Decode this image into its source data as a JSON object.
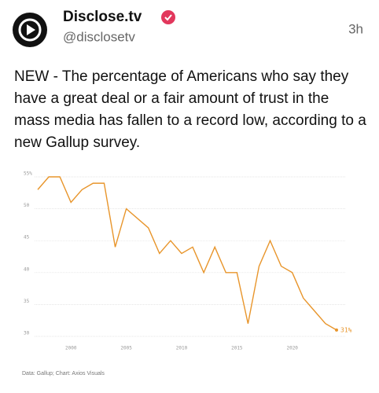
{
  "header": {
    "name": "Disclose.tv",
    "handle": "@disclosetv",
    "time": "3h"
  },
  "text": "NEW - The percentage of Americans who say they have a great deal or a fair amount of trust in the mass media has fallen to a record low, according to a new Gallup survey.",
  "chart_data": {
    "type": "line",
    "x": [
      1997,
      1998,
      1999,
      2000,
      2001,
      2002,
      2003,
      2004,
      2005,
      2007,
      2008,
      2009,
      2010,
      2011,
      2012,
      2013,
      2014,
      2015,
      2016,
      2017,
      2018,
      2019,
      2020,
      2021,
      2022,
      2023,
      2024
    ],
    "values": [
      53,
      55,
      55,
      51,
      53,
      54,
      54,
      44,
      50,
      47,
      43,
      45,
      43,
      44,
      40,
      44,
      40,
      40,
      32,
      41,
      45,
      41,
      40,
      36,
      34,
      32,
      31
    ],
    "value_labels": [
      null,
      null,
      null,
      null,
      null,
      null,
      null,
      null,
      null,
      null,
      null,
      null,
      null,
      null,
      null,
      null,
      null,
      null,
      null,
      null,
      null,
      null,
      null,
      null,
      null,
      null,
      "31%"
    ],
    "color": "#e8952b",
    "xlim": [
      1997,
      2024
    ],
    "xticks": [
      2000,
      2005,
      2010,
      2015,
      2020
    ],
    "ylim": [
      30,
      55
    ],
    "yticks": [
      30,
      35,
      40,
      45,
      50,
      {
        "value": 55,
        "label": "55%"
      }
    ],
    "grid": true,
    "source": "Data: Gallup; Chart: Axios Visuals"
  }
}
